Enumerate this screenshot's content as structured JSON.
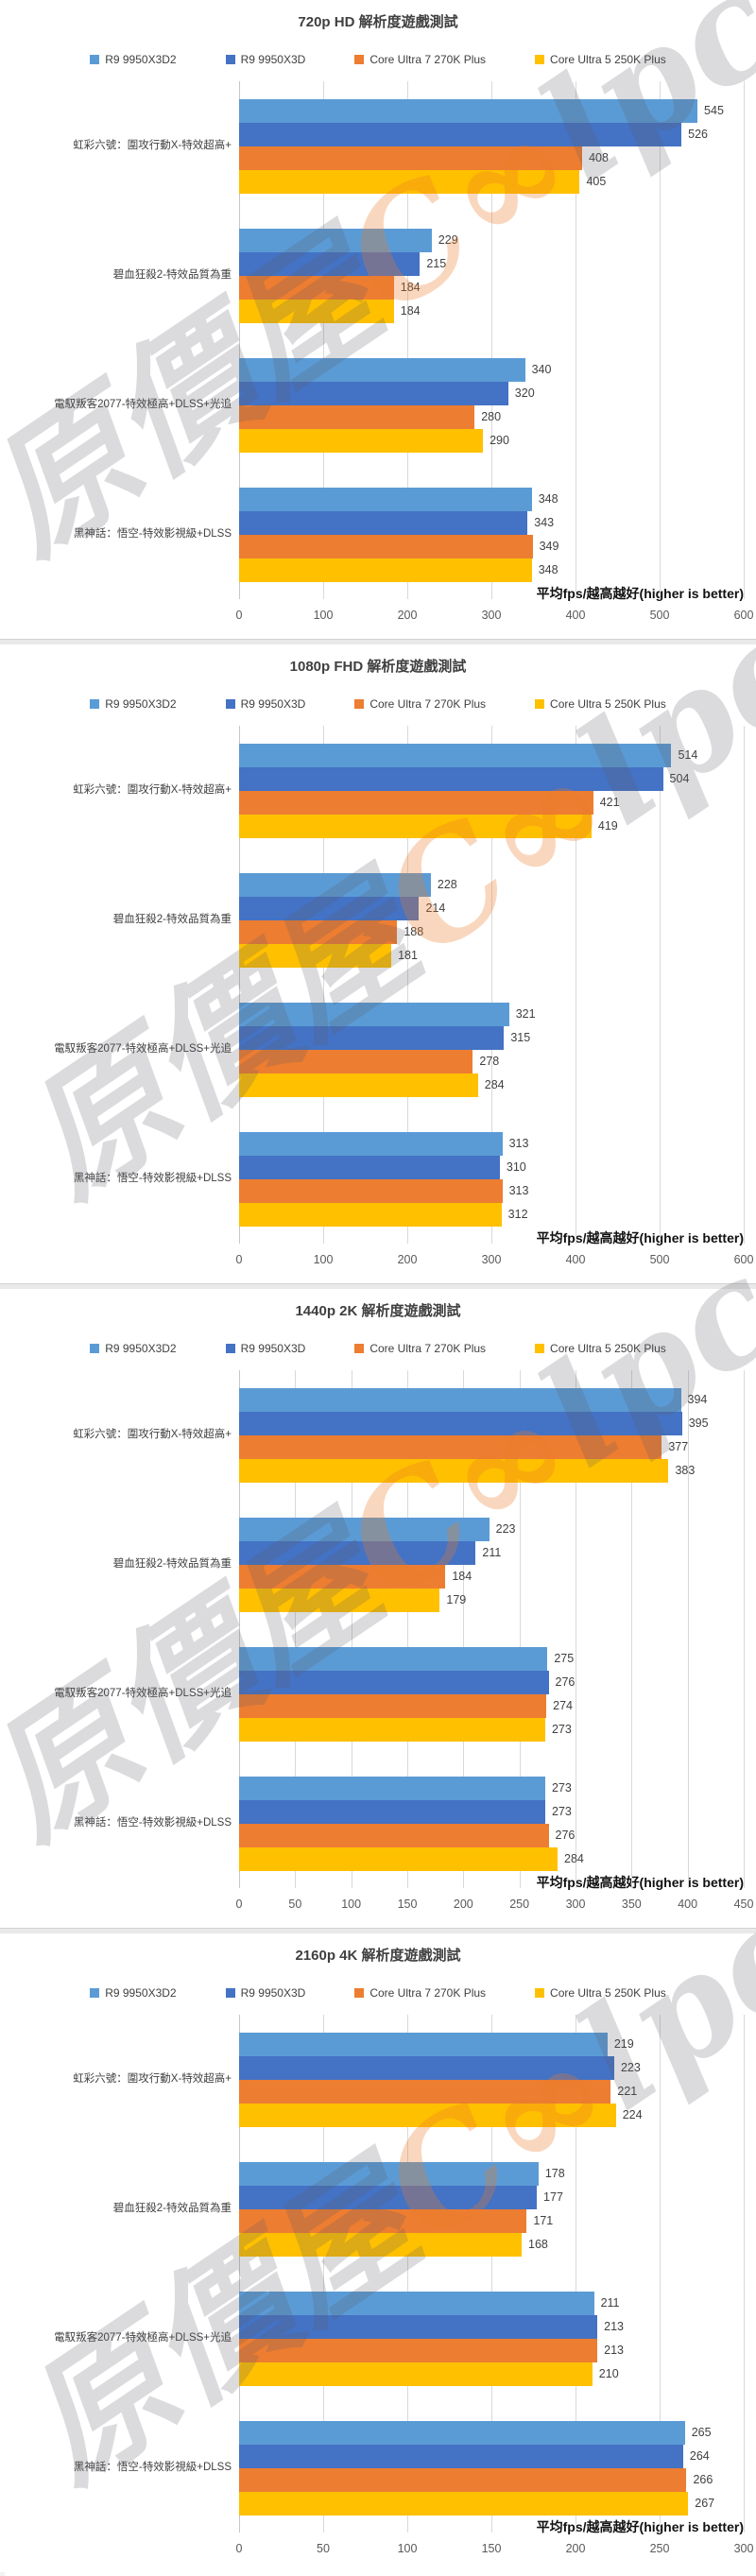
{
  "axis_title": "平均fps/越高越好(higher is better)",
  "watermark": {
    "cjk": "原價屋",
    "latin_oo": "C∞",
    "latin_rest": "lpc"
  },
  "chart_data": [
    {
      "type": "bar",
      "orientation": "horizontal",
      "title": "720p HD 解析度遊戲測試",
      "xlabel": "平均fps/越高越好(higher is better)",
      "categories": [
        "虹彩六號：圍攻行動X-特效超高+",
        "碧血狂殺2-特效品質為重",
        "電馭叛客2077-特效極高+DLSS+光追",
        "黑神話：悟空-特效影視級+DLSS"
      ],
      "series": [
        {
          "name": "R9 9950X3D2",
          "color": "#5B9BD5",
          "values": [
            545,
            229,
            340,
            348
          ]
        },
        {
          "name": "R9 9950X3D",
          "color": "#4472C4",
          "values": [
            526,
            215,
            320,
            343
          ]
        },
        {
          "name": "Core Ultra 7 270K Plus",
          "color": "#ED7D31",
          "values": [
            408,
            184,
            280,
            349
          ]
        },
        {
          "name": "Core Ultra 5 250K Plus",
          "color": "#FFC000",
          "values": [
            405,
            184,
            290,
            348
          ]
        }
      ],
      "xlim": [
        0,
        600
      ],
      "tick_step": 100,
      "grid": true,
      "legend_position": "top"
    },
    {
      "type": "bar",
      "orientation": "horizontal",
      "title": "1080p FHD 解析度遊戲測試",
      "xlabel": "平均fps/越高越好(higher is better)",
      "categories": [
        "虹彩六號：圍攻行動X-特效超高+",
        "碧血狂殺2-特效品質為重",
        "電馭叛客2077-特效極高+DLSS+光追",
        "黑神話：悟空-特效影視級+DLSS"
      ],
      "series": [
        {
          "name": "R9 9950X3D2",
          "color": "#5B9BD5",
          "values": [
            514,
            228,
            321,
            313
          ]
        },
        {
          "name": "R9 9950X3D",
          "color": "#4472C4",
          "values": [
            504,
            214,
            315,
            310
          ]
        },
        {
          "name": "Core Ultra 7 270K Plus",
          "color": "#ED7D31",
          "values": [
            421,
            188,
            278,
            313
          ]
        },
        {
          "name": "Core Ultra 5 250K Plus",
          "color": "#FFC000",
          "values": [
            419,
            181,
            284,
            312
          ]
        }
      ],
      "xlim": [
        0,
        600
      ],
      "tick_step": 100,
      "grid": true,
      "legend_position": "top"
    },
    {
      "type": "bar",
      "orientation": "horizontal",
      "title": "1440p 2K 解析度遊戲測試",
      "xlabel": "平均fps/越高越好(higher is better)",
      "categories": [
        "虹彩六號：圍攻行動X-特效超高+",
        "碧血狂殺2-特效品質為重",
        "電馭叛客2077-特效極高+DLSS+光追",
        "黑神話：悟空-特效影視級+DLSS"
      ],
      "series": [
        {
          "name": "R9 9950X3D2",
          "color": "#5B9BD5",
          "values": [
            394,
            223,
            275,
            273
          ]
        },
        {
          "name": "R9 9950X3D",
          "color": "#4472C4",
          "values": [
            395,
            211,
            276,
            273
          ]
        },
        {
          "name": "Core Ultra 7 270K Plus",
          "color": "#ED7D31",
          "values": [
            377,
            184,
            274,
            276
          ]
        },
        {
          "name": "Core Ultra 5 250K Plus",
          "color": "#FFC000",
          "values": [
            383,
            179,
            273,
            284
          ]
        }
      ],
      "xlim": [
        0,
        450
      ],
      "tick_step": 50,
      "grid": true,
      "legend_position": "top"
    },
    {
      "type": "bar",
      "orientation": "horizontal",
      "title": "2160p 4K 解析度遊戲測試",
      "xlabel": "平均fps/越高越好(higher is better)",
      "categories": [
        "虹彩六號：圍攻行動X-特效超高+",
        "碧血狂殺2-特效品質為重",
        "電馭叛客2077-特效極高+DLSS+光追",
        "黑神話：悟空-特效影視級+DLSS"
      ],
      "series": [
        {
          "name": "R9 9950X3D2",
          "color": "#5B9BD5",
          "values": [
            219,
            178,
            211,
            265
          ]
        },
        {
          "name": "R9 9950X3D",
          "color": "#4472C4",
          "values": [
            223,
            177,
            213,
            264
          ]
        },
        {
          "name": "Core Ultra 7 270K Plus",
          "color": "#ED7D31",
          "values": [
            221,
            171,
            213,
            266
          ]
        },
        {
          "name": "Core Ultra 5 250K Plus",
          "color": "#FFC000",
          "values": [
            224,
            168,
            210,
            267
          ]
        }
      ],
      "xlim": [
        0,
        300
      ],
      "tick_step": 50,
      "grid": true,
      "legend_position": "top"
    }
  ]
}
